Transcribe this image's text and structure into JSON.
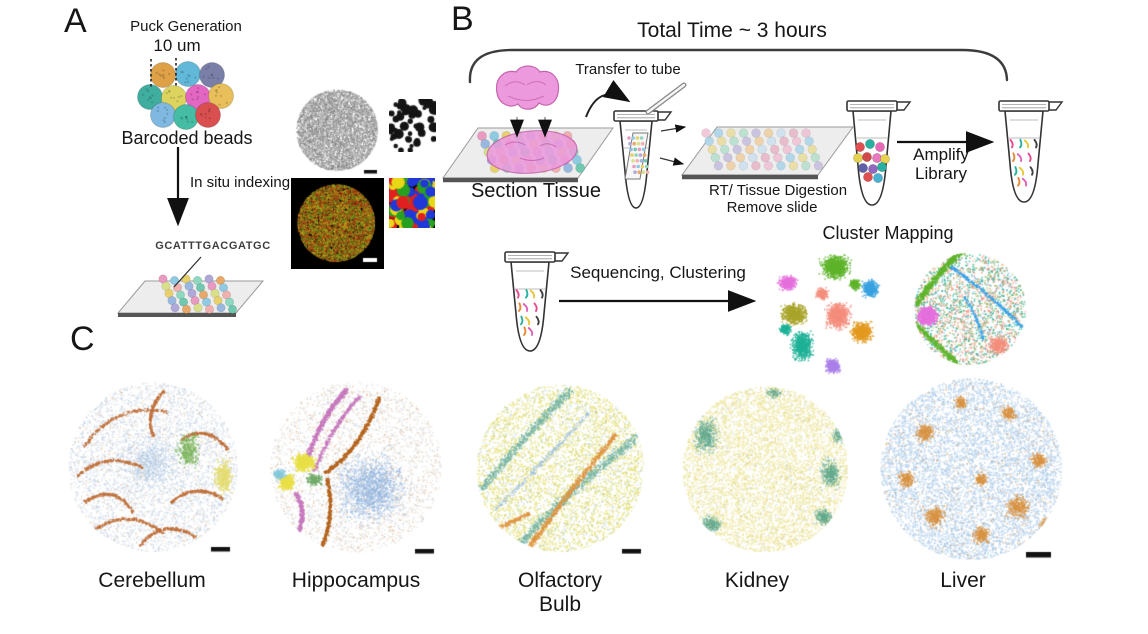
{
  "panel_a": {
    "label": "A",
    "puck_generation": "Puck Generation",
    "bead_size": "10 um",
    "barcoded_beads": "Barcoded beads",
    "in_situ_indexing": "In situ indexing",
    "barcode_sequence": "GCATTTGACGATGC"
  },
  "panel_b": {
    "label": "B",
    "total_time": "Total Time ~ 3 hours",
    "transfer_to_tube": "Transfer to tube",
    "section_tissue": "Section Tissue",
    "rt_digestion_line1": "RT/ Tissue Digestion",
    "rt_digestion_line2": "Remove slide",
    "amplify_line1": "Amplify",
    "amplify_line2": "Library",
    "sequencing_clustering": "Sequencing, Clustering",
    "cluster_mapping": "Cluster Mapping"
  },
  "panel_c": {
    "label": "C",
    "tissues": [
      {
        "line1": "Cerebellum",
        "line2": ""
      },
      {
        "line1": "Hippocampus",
        "line2": ""
      },
      {
        "line1": "Olfactory",
        "line2": "Bulb"
      },
      {
        "line1": "Kidney",
        "line2": ""
      },
      {
        "line1": "Liver",
        "line2": ""
      }
    ]
  },
  "colors": {
    "bead_cluster": [
      "#dfa147",
      "#62b8d8",
      "#7a7fa8",
      "#3fae9e",
      "#ddd45f",
      "#e366c3",
      "#e8bf5a",
      "#7fb8e0",
      "#45bda5",
      "#d94f4f"
    ],
    "slide_beads": [
      "#e89ac0",
      "#8ecbe3",
      "#e8d06a",
      "#8fd8c0",
      "#b0a8d8",
      "#e8a86a",
      "#d8e08a",
      "#f0b0b0",
      "#98b8e0",
      "#70c8b0"
    ],
    "rt_slide_beads": [
      "#f0c0d4",
      "#a8d4e8",
      "#e8dc9a",
      "#b4e0cc",
      "#c6bede",
      "#f0ce9e",
      "#ccdff0",
      "#e8b4c6"
    ],
    "tube_beads": [
      "#e05050",
      "#28b0a0",
      "#e868b8",
      "#e8d050",
      "#d04848",
      "#e878c0",
      "#e8d050",
      "#6060a8",
      "#9068c0",
      "#28b0a0",
      "#e05050",
      "#48b0d0"
    ],
    "library_strands": [
      "#e8488c",
      "#28b0a0",
      "#e8c838",
      "#404040",
      "#e88838",
      "#e060b8"
    ],
    "tissue_pink": "#ec9add",
    "tissue_outline": "#c565ae",
    "fluorescent_specks": [
      "#b84818",
      "#7aa41e",
      "#caa41e",
      "#9c3210",
      "#607818"
    ],
    "bead_mask_blocks": [
      "#e02020",
      "#2038d8",
      "#28a020",
      "#e8d818"
    ],
    "tsne_clusters": [
      "#e570dd",
      "#a9a52b",
      "#5eb42a",
      "#3aa2e0",
      "#1fb296",
      "#f48d7c",
      "#e39a20",
      "#ab80ea"
    ],
    "map_extra": [
      "#d8c480",
      "#7ab84c",
      "#38a2e8"
    ],
    "organ_palettes": {
      "cerebellum": {
        "base": "#ccd2da",
        "blue": "#a9c3e0",
        "folia": "#c0703a",
        "green": "#7db45e",
        "yellow": "#e3dc72",
        "orange": "#ddab6a"
      },
      "hippocampus": {
        "base": "#d6cdc2",
        "blue": "#8fb3e0",
        "magenta": "#c678bc",
        "brown": "#b4641e",
        "yellow": "#e9e047",
        "green": "#72aa68",
        "lightblue": "#85c8dc",
        "orange": "#dca06a"
      },
      "olfactory_bulb": {
        "yellow": "#e6df70",
        "teal": "#74b4a4",
        "blue": "#9abed8",
        "orange": "#de9440",
        "green": "#b9d8a8"
      },
      "kidney": {
        "yellow": "#ebe38e",
        "paleyellow": "#f2ecb6",
        "teal": "#5fa88c",
        "blue": "#a0c0dc",
        "orange": "#e0a055"
      },
      "liver": {
        "blue": "#abcbe8",
        "paleblue": "#c3d9ee",
        "orange": "#d89240"
      }
    }
  }
}
